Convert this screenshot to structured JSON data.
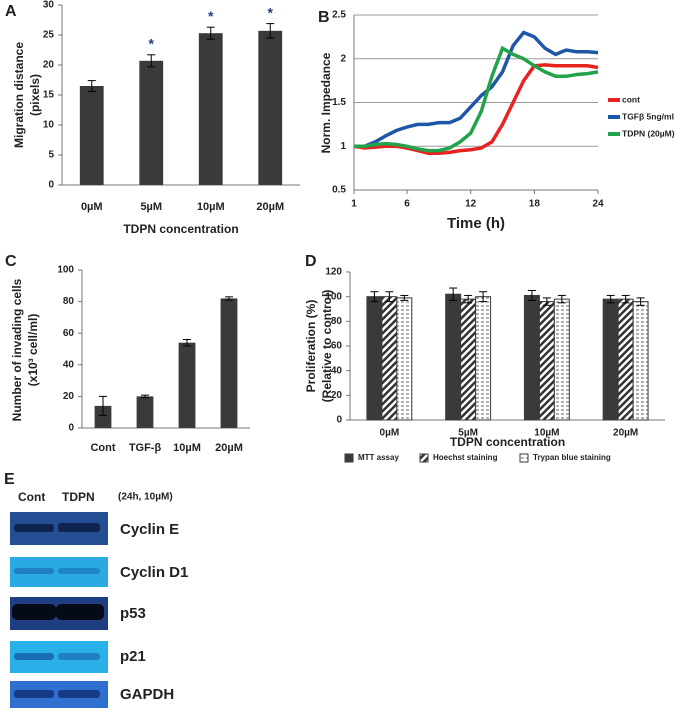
{
  "chart_data": [
    {
      "type": "bar",
      "label": "A",
      "ylabel": [
        "Migration distance",
        "(pixels)"
      ],
      "xlabel": "TDPN concentration",
      "categories": [
        "0µM",
        "5µM",
        "10µM",
        "20µM"
      ],
      "values": [
        16.5,
        20.7,
        25.3,
        25.7
      ],
      "errors": [
        0.9,
        1.0,
        1.0,
        1.2
      ],
      "annotations": [
        null,
        "*",
        "*",
        "*"
      ],
      "color": "#3a3a3a",
      "ylim": [
        0,
        30
      ],
      "yticks": [
        0,
        5,
        10,
        15,
        20,
        25,
        30
      ],
      "grid": false
    },
    {
      "type": "line",
      "label": "B",
      "ylabel": [
        "Norm. Impedance"
      ],
      "xlabel": "Time (h)",
      "x": [
        1,
        2,
        3,
        4,
        5,
        6,
        7,
        8,
        9,
        10,
        11,
        12,
        13,
        14,
        15,
        16,
        17,
        18,
        19,
        20,
        21,
        22,
        23,
        24
      ],
      "series": [
        {
          "name": "cont",
          "color": "#e8231f",
          "values": [
            1.0,
            0.98,
            0.99,
            1.0,
            1.0,
            0.98,
            0.95,
            0.92,
            0.92,
            0.93,
            0.95,
            0.96,
            0.98,
            1.05,
            1.25,
            1.5,
            1.75,
            1.92,
            1.93,
            1.92,
            1.92,
            1.92,
            1.92,
            1.9
          ]
        },
        {
          "name": "TGFβ 5ng/ml",
          "color": "#1f57a8",
          "values": [
            1.0,
            1.0,
            1.05,
            1.12,
            1.18,
            1.22,
            1.25,
            1.25,
            1.27,
            1.27,
            1.32,
            1.45,
            1.58,
            1.68,
            1.85,
            2.15,
            2.3,
            2.25,
            2.12,
            2.05,
            2.1,
            2.08,
            2.08,
            2.07
          ]
        },
        {
          "name": "TDPN (20µM)",
          "color": "#22a24a",
          "values": [
            1.0,
            1.0,
            1.02,
            1.03,
            1.02,
            1.0,
            0.97,
            0.95,
            0.95,
            0.98,
            1.05,
            1.15,
            1.4,
            1.8,
            2.12,
            2.05,
            2.0,
            1.92,
            1.85,
            1.8,
            1.8,
            1.82,
            1.83,
            1.85
          ]
        }
      ],
      "xlim": [
        1,
        24
      ],
      "xticks": [
        1,
        6,
        12,
        18,
        24
      ],
      "ylim": [
        0.5,
        2.5
      ],
      "yticks": [
        0.5,
        1,
        1.5,
        2,
        2.5
      ],
      "grid": true,
      "legend": "right"
    },
    {
      "type": "bar",
      "label": "C",
      "ylabel": [
        "Number of invading cells",
        "(x10³ cell/ml)"
      ],
      "categories": [
        "Cont",
        "TGF-β",
        "10µM",
        "20µM"
      ],
      "values": [
        14,
        20,
        54,
        82
      ],
      "errors": [
        6,
        0.8,
        2,
        1
      ],
      "color": "#3a3a3a",
      "ylim": [
        0,
        100
      ],
      "yticks": [
        0,
        20,
        40,
        60,
        80,
        100
      ],
      "grid": false
    },
    {
      "type": "groupedbar",
      "label": "D",
      "ylabel": [
        "Proliferation (%)",
        "(Relative to control)"
      ],
      "xlabel": "TDPN concentration",
      "categories": [
        "0µM",
        "5µM",
        "10µM",
        "20µM"
      ],
      "series": [
        {
          "name": "MTT assay",
          "color": "#3a3a3a",
          "pattern": "solid",
          "values": [
            100,
            102,
            101,
            98
          ],
          "errors": [
            4,
            5,
            4,
            3
          ]
        },
        {
          "name": "Hoechst staining",
          "color": "#3a3a3a",
          "pattern": "hatch",
          "values": [
            100,
            98,
            96,
            98
          ],
          "errors": [
            4,
            3,
            3,
            3
          ]
        },
        {
          "name": "Trypan blue staining",
          "color": "#3a3a3a",
          "pattern": "dots",
          "values": [
            99,
            100,
            98,
            96
          ],
          "errors": [
            2,
            4,
            3,
            3
          ]
        }
      ],
      "ylim": [
        0,
        120
      ],
      "yticks": [
        0,
        20,
        40,
        60,
        80,
        100,
        120
      ],
      "grid": false,
      "legend": "bottom"
    }
  ],
  "blot": {
    "label": "E",
    "lanes": [
      "Cont",
      "TDPN"
    ],
    "condition": "(24h, 10µM)",
    "rows": [
      "Cyclin E",
      "Cyclin D1",
      "p53",
      "p21",
      "GAPDH"
    ]
  }
}
